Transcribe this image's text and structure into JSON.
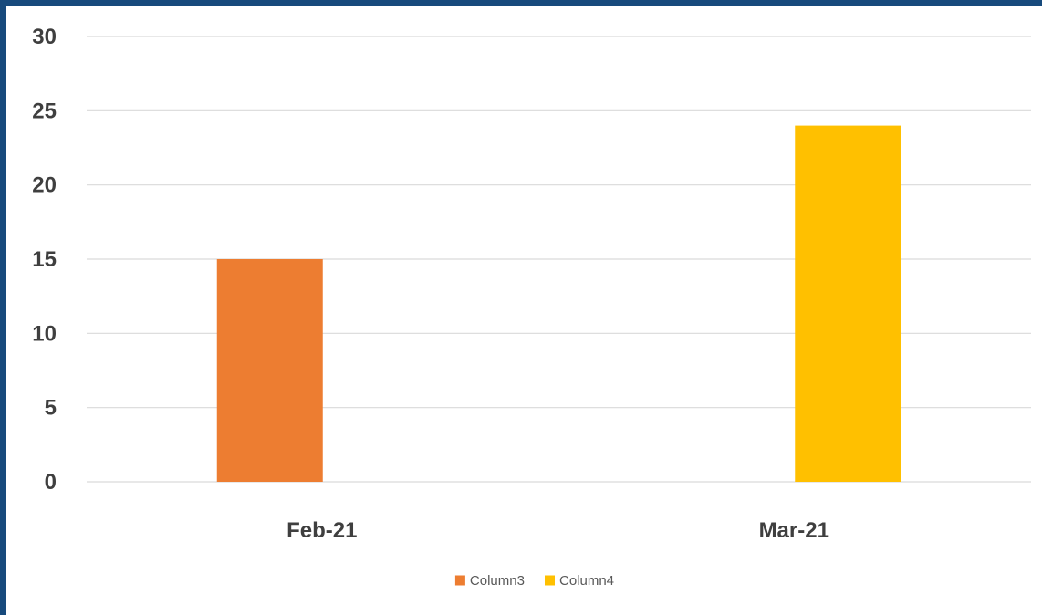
{
  "chart_data": {
    "type": "bar",
    "title": "",
    "xlabel": "",
    "ylabel": "",
    "categories": [
      "Feb-21",
      "Mar-21"
    ],
    "series": [
      {
        "name": "Column3",
        "values": [
          15,
          null
        ],
        "color": "#ed7d31"
      },
      {
        "name": "Column4",
        "values": [
          null,
          24
        ],
        "color": "#ffc000"
      }
    ],
    "ylim": [
      0,
      30
    ],
    "y_ticks": [
      0,
      5,
      10,
      15,
      20,
      25,
      30
    ],
    "y_tick_labels": [
      "0",
      "5",
      "10",
      "15",
      "20",
      "25",
      "30"
    ],
    "grid": true,
    "legend_position": "bottom",
    "frame_color": "#174a7c"
  }
}
